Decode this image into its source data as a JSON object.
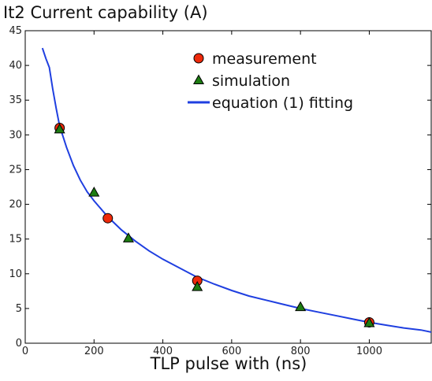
{
  "chart_data": {
    "type": "scatter",
    "title": "It2 Current capability (A)",
    "xlabel": "TLP pulse with (ns)",
    "ylabel": "",
    "xlim": [
      0,
      1180
    ],
    "ylim": [
      0,
      45
    ],
    "xticks": [
      0,
      200,
      400,
      600,
      800,
      1000
    ],
    "yticks": [
      0,
      5,
      10,
      15,
      20,
      25,
      30,
      35,
      40,
      45
    ],
    "grid": false,
    "legend_position": "top-right",
    "series": [
      {
        "name": "measurement",
        "kind": "circle-marker",
        "color": "#ee2a0b",
        "points": [
          [
            100,
            31
          ],
          [
            240,
            18
          ],
          [
            500,
            9
          ],
          [
            1000,
            3
          ]
        ]
      },
      {
        "name": "simulation",
        "kind": "triangle-marker",
        "color": "#1e7d12",
        "points": [
          [
            100,
            30.8
          ],
          [
            200,
            21.7
          ],
          [
            300,
            15.1
          ],
          [
            500,
            8.1
          ],
          [
            800,
            5.2
          ],
          [
            1000,
            2.9
          ]
        ]
      },
      {
        "name": "equation (1) fitting",
        "kind": "line",
        "color": "#1f3fe0",
        "points": [
          [
            50,
            42.5
          ],
          [
            60,
            41
          ],
          [
            70,
            39.7
          ],
          [
            80,
            36.6
          ],
          [
            90,
            33.8
          ],
          [
            100,
            31.3
          ],
          [
            120,
            28.2
          ],
          [
            140,
            25.6
          ],
          [
            160,
            23.5
          ],
          [
            180,
            21.8
          ],
          [
            200,
            20.5
          ],
          [
            240,
            18.2
          ],
          [
            280,
            16.3
          ],
          [
            320,
            14.7
          ],
          [
            360,
            13.3
          ],
          [
            400,
            12.1
          ],
          [
            450,
            10.8
          ],
          [
            500,
            9.5
          ],
          [
            550,
            8.5
          ],
          [
            600,
            7.6
          ],
          [
            650,
            6.8
          ],
          [
            700,
            6.2
          ],
          [
            750,
            5.6
          ],
          [
            800,
            5.0
          ],
          [
            850,
            4.5
          ],
          [
            900,
            4.0
          ],
          [
            950,
            3.5
          ],
          [
            1000,
            3.0
          ],
          [
            1050,
            2.6
          ],
          [
            1100,
            2.2
          ],
          [
            1150,
            1.9
          ],
          [
            1180,
            1.6
          ]
        ]
      }
    ]
  }
}
